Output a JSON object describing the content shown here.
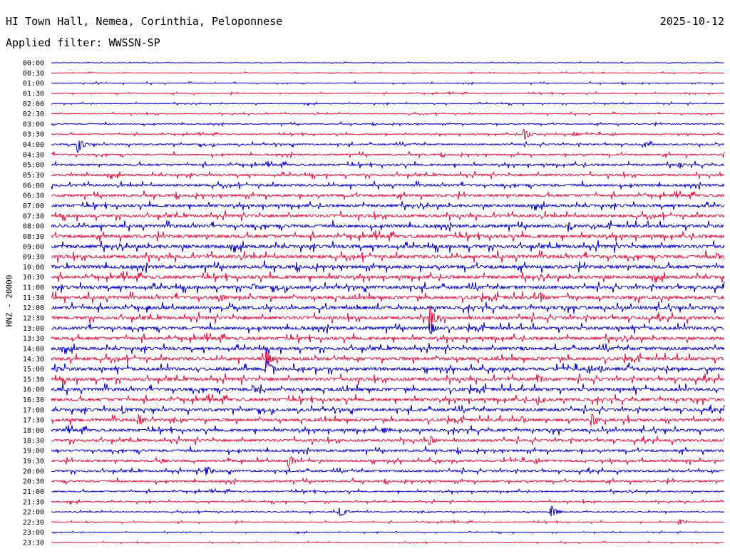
{
  "header": {
    "station": "HI Town Hall, Nemea, Corinthia, Peloponnese",
    "filter": "Applied filter: WWSSN-SP",
    "date": "2025-10-12"
  },
  "chart_data": {
    "type": "line",
    "ylabel": "HNZ - 20000",
    "row_labels": [
      "00:00",
      "00:30",
      "01:00",
      "01:30",
      "02:00",
      "02:30",
      "03:00",
      "03:30",
      "04:00",
      "04:30",
      "05:00",
      "05:30",
      "06:00",
      "06:30",
      "07:00",
      "07:30",
      "08:00",
      "08:30",
      "09:00",
      "09:30",
      "10:00",
      "10:30",
      "11:00",
      "11:30",
      "12:00",
      "12:30",
      "13:00",
      "13:30",
      "14:00",
      "14:30",
      "15:00",
      "15:30",
      "16:00",
      "16:30",
      "17:00",
      "17:30",
      "18:00",
      "18:30",
      "19:00",
      "19:30",
      "20:00",
      "20:30",
      "21:00",
      "21:30",
      "22:00",
      "22:30",
      "23:00",
      "23:30"
    ],
    "colors": [
      "#0000cc",
      "#e0103c"
    ],
    "noise_level": [
      0.3,
      0.35,
      0.45,
      0.5,
      0.5,
      0.55,
      0.6,
      0.65,
      0.9,
      1.0,
      1.2,
      1.3,
      1.4,
      1.5,
      1.6,
      1.7,
      1.8,
      1.9,
      2.0,
      2.0,
      2.0,
      1.9,
      1.9,
      1.9,
      1.9,
      1.9,
      1.8,
      1.8,
      1.8,
      1.9,
      1.9,
      1.9,
      1.9,
      1.8,
      1.7,
      1.7,
      1.6,
      1.5,
      1.4,
      1.3,
      1.2,
      1.1,
      0.8,
      0.7,
      0.6,
      0.5,
      0.4,
      0.4
    ],
    "events": [
      {
        "row": 7,
        "minute": 21.1,
        "amp": 9
      },
      {
        "row": 7,
        "minute": 23.3,
        "amp": 4
      },
      {
        "row": 8,
        "minute": 1.2,
        "amp": 12
      },
      {
        "row": 8,
        "minute": 26.5,
        "amp": 4
      },
      {
        "row": 10,
        "minute": 28.0,
        "amp": 4
      },
      {
        "row": 16,
        "minute": 23.1,
        "amp": 6
      },
      {
        "row": 19,
        "minute": 29.7,
        "amp": 5
      },
      {
        "row": 22,
        "minute": 9.0,
        "amp": 6
      },
      {
        "row": 23,
        "minute": 7.6,
        "amp": 5
      },
      {
        "row": 23,
        "minute": 21.8,
        "amp": 8
      },
      {
        "row": 24,
        "minute": 4.3,
        "amp": 4
      },
      {
        "row": 25,
        "minute": 16.9,
        "amp": 18
      },
      {
        "row": 26,
        "minute": 16.9,
        "amp": 10
      },
      {
        "row": 28,
        "minute": 21.0,
        "amp": 4
      },
      {
        "row": 29,
        "minute": 9.6,
        "amp": 14
      },
      {
        "row": 30,
        "minute": 0.2,
        "amp": 5
      },
      {
        "row": 30,
        "minute": 9.6,
        "amp": 15
      },
      {
        "row": 30,
        "minute": 24.5,
        "amp": 5
      },
      {
        "row": 31,
        "minute": 21.7,
        "amp": 8
      },
      {
        "row": 32,
        "minute": 9.0,
        "amp": 7
      },
      {
        "row": 33,
        "minute": 21.7,
        "amp": 8
      },
      {
        "row": 34,
        "minute": 3.2,
        "amp": 6
      },
      {
        "row": 35,
        "minute": 3.9,
        "amp": 9
      },
      {
        "row": 35,
        "minute": 21.0,
        "amp": 6
      },
      {
        "row": 35,
        "minute": 24.1,
        "amp": 10
      },
      {
        "row": 36,
        "minute": 14.8,
        "amp": 6
      },
      {
        "row": 37,
        "minute": 16.9,
        "amp": 7
      },
      {
        "row": 39,
        "minute": 10.6,
        "amp": 9
      },
      {
        "row": 39,
        "minute": 4.9,
        "amp": 4
      },
      {
        "row": 40,
        "minute": 6.9,
        "amp": 10
      },
      {
        "row": 44,
        "minute": 12.9,
        "amp": 8
      },
      {
        "row": 44,
        "minute": 22.3,
        "amp": 10
      },
      {
        "row": 45,
        "minute": 28.0,
        "amp": 4
      }
    ]
  }
}
